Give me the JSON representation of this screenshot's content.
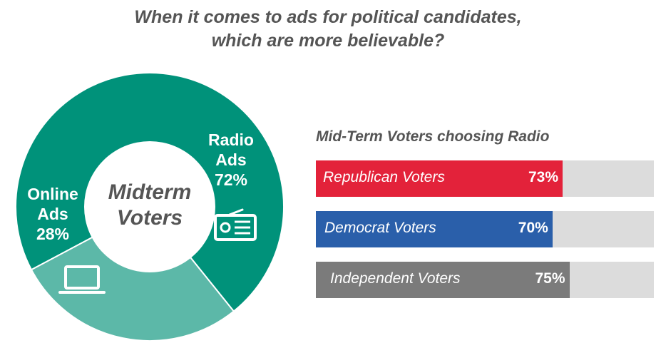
{
  "title": {
    "line1": "When it comes to ads for political candidates,",
    "line2": "which are more believable?"
  },
  "chart_data": [
    {
      "type": "pie",
      "center_label": [
        "Midterm",
        "Voters"
      ],
      "slices": [
        {
          "name_lines": [
            "Radio",
            "Ads"
          ],
          "value": 72,
          "value_label": "72%",
          "color": "#00927a",
          "icon": "radio-icon"
        },
        {
          "name_lines": [
            "Online",
            "Ads"
          ],
          "value": 28,
          "value_label": "28%",
          "color": "#5cb8a8",
          "icon": "laptop-icon"
        }
      ]
    },
    {
      "type": "bar",
      "title": "Mid-Term Voters choosing Radio",
      "orientation": "horizontal",
      "xlim": [
        0,
        100
      ],
      "categories": [
        "Republican Voters",
        "Democrat Voters",
        "Independent Voters"
      ],
      "values": [
        73,
        70,
        75
      ],
      "value_labels": [
        "73%",
        "70%",
        "75%"
      ],
      "colors": [
        "#e3223a",
        "#2a5faa",
        "#7b7b7b"
      ],
      "track_color": "#dcdcdc"
    }
  ]
}
